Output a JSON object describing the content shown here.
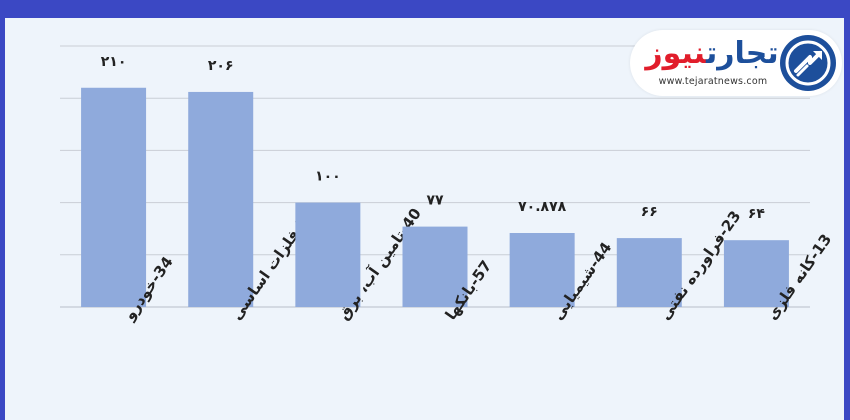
{
  "chart_data": {
    "type": "bar",
    "categories": [
      "34-خودرو",
      "27-فلزات اساسی",
      "40-تامین آب، برق",
      "57-بانکها",
      "44-شیمیایی",
      "23-فراورده نفتی",
      "13-کانه فلزی"
    ],
    "values": [
      210,
      206,
      100,
      77,
      70.878,
      66,
      64
    ],
    "data_labels": [
      "۲۱۰",
      "۲۰۶",
      "۱۰۰",
      "۷۷",
      "۷۰.۸۷۸",
      "۶۶",
      "۶۴"
    ],
    "ylim": [
      0,
      250
    ],
    "yticks": [
      0,
      50,
      100,
      150,
      200,
      250
    ],
    "grid": true,
    "bar_color": "#8faadc",
    "title": "",
    "xlabel": "",
    "ylabel": ""
  },
  "logo": {
    "title_blue": "تجارت",
    "title_red": "نیوز",
    "url": "www.tejaratnews.com",
    "blue": "#1d4f9b",
    "red": "#e11d2b"
  },
  "theme": {
    "frame_color": "#3b48c4",
    "plot_background": "#eef4fb",
    "grid_color": "#c9ced6"
  }
}
